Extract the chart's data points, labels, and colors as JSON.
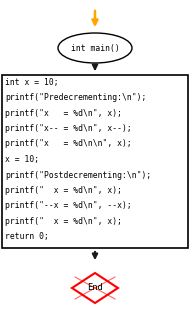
{
  "bg_color": "#ffffff",
  "terminal_start_text": "int main()",
  "process_lines": [
    "int x = 10;",
    "printf(\"Predecrementing:\\n\");",
    "printf(\"x   = %d\\n\", x);",
    "printf(\"x-- = %d\\n\", x--);",
    "printf(\"x   = %d\\n\\n\", x);",
    "x = 10;",
    "printf(\"Postdecrementing:\\n\");",
    "printf(\"  x = %d\\n\", x);",
    "printf(\"--x = %d\\n\", --x);",
    "printf(\"  x = %d\\n\", x);",
    "return 0;"
  ],
  "terminal_end_text": "End",
  "arrow_color": "#FFA500",
  "arrow_dark": "#1a1a1a",
  "terminal_border": "#000000",
  "process_border": "#000000",
  "decision_border": "#FF0000",
  "font_size": 5.8,
  "font_family": "monospace"
}
